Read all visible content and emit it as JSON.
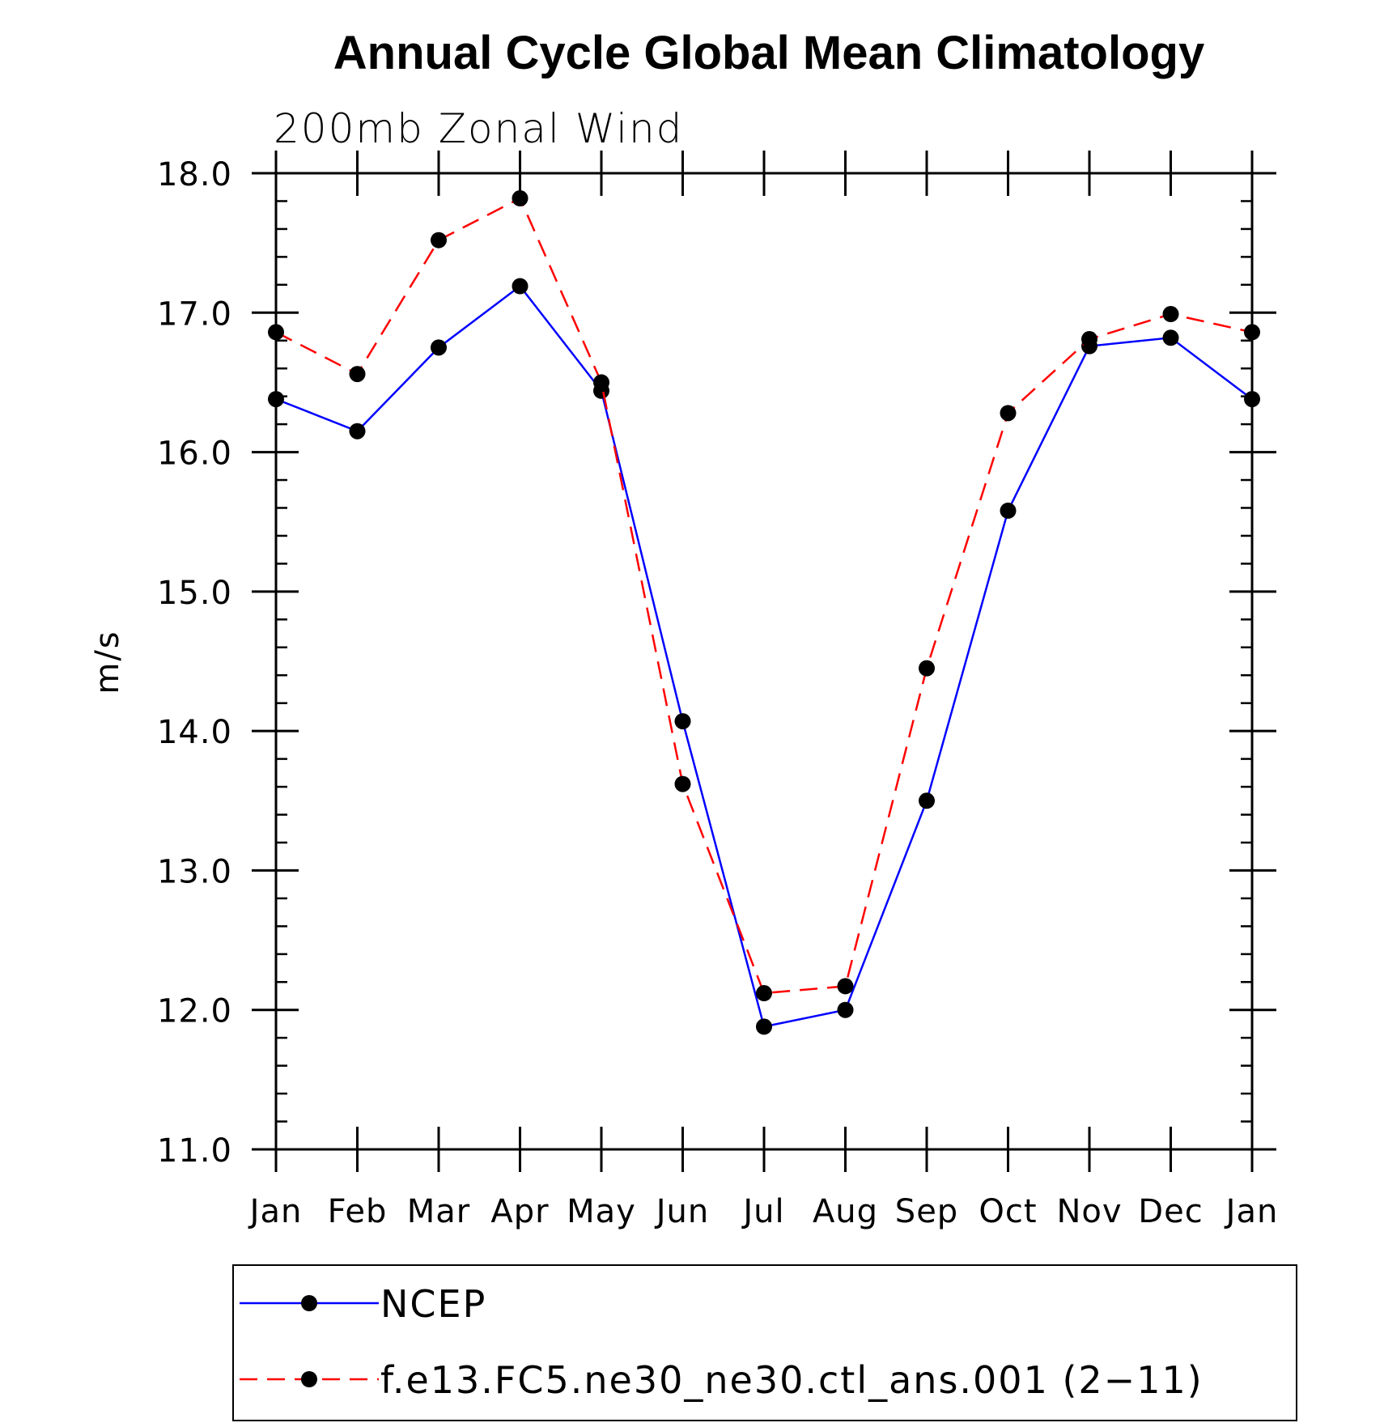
{
  "chart_data": {
    "type": "line",
    "title": "Annual Cycle Global Mean Climatology",
    "subtitle": "200mb Zonal Wind",
    "xlabel": "",
    "ylabel": "m/s",
    "categories": [
      "Jan",
      "Feb",
      "Mar",
      "Apr",
      "May",
      "Jun",
      "Jul",
      "Aug",
      "Sep",
      "Oct",
      "Nov",
      "Dec",
      "Jan"
    ],
    "ylim": [
      11.0,
      18.0
    ],
    "yticks": [
      "11.0",
      "12.0",
      "13.0",
      "14.0",
      "15.0",
      "16.0",
      "17.0",
      "18.0"
    ],
    "y_minor_step": 0.2,
    "grid": false,
    "legend_position": "bottom",
    "series": [
      {
        "name": "NCEP",
        "color": "#0000ff",
        "line_style": "solid",
        "marker": "filled-circle",
        "values": [
          16.38,
          16.15,
          16.75,
          17.19,
          16.44,
          14.07,
          11.88,
          12.0,
          13.5,
          15.58,
          16.76,
          16.82,
          16.38
        ]
      },
      {
        "name": "f.e13.FC5.ne30_ne30.ctl_ans.001 (2−11)",
        "color": "#ff0000",
        "line_style": "dashed",
        "marker": "filled-circle",
        "values": [
          16.86,
          16.56,
          17.52,
          17.82,
          16.5,
          13.62,
          12.12,
          12.17,
          14.45,
          16.28,
          16.81,
          16.99,
          16.86
        ]
      }
    ]
  }
}
